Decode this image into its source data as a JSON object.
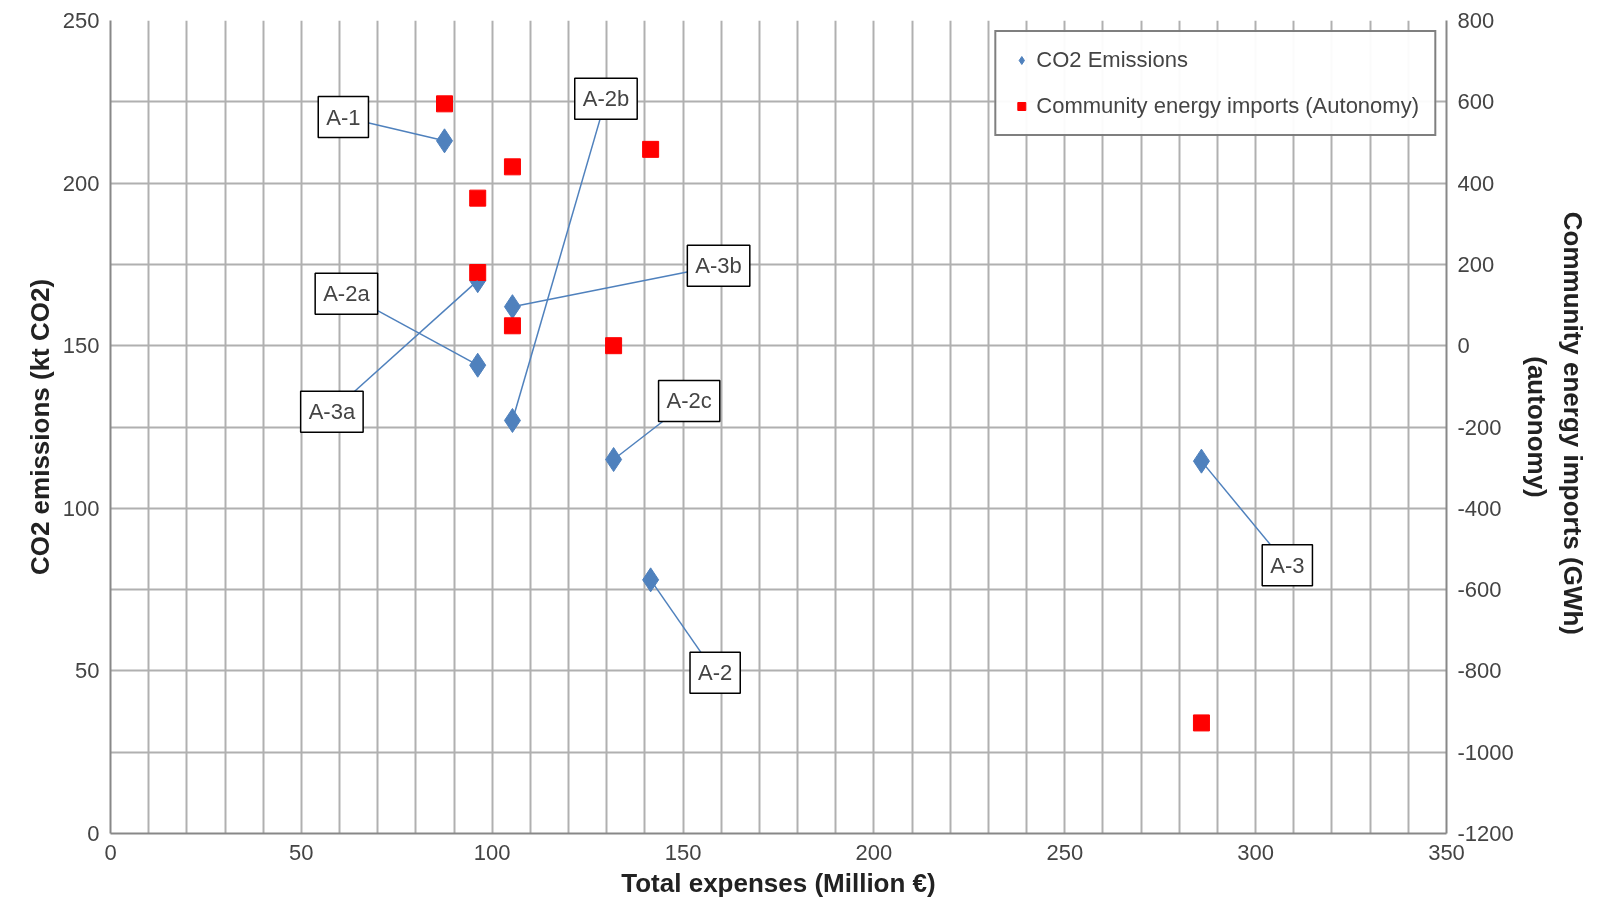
{
  "chart_data": {
    "type": "scatter",
    "xlabel": "Total expenses (Million €)",
    "ylabel": "CO2 emissions (kt CO2)",
    "y2label": "Community  energy imports (GWh)\n(autonomy)",
    "x": [
      87.5,
      96.2,
      96.2,
      105.3,
      105.3,
      131.8,
      141.5,
      285.8
    ],
    "series": [
      {
        "name": "CO2 Emissions",
        "color": "#4f81bd",
        "marker": "diamond",
        "values": [
          213,
          170,
          144,
          162,
          127,
          115,
          78,
          114.5
        ]
      },
      {
        "name": "Community energy imports (Autonomy)",
        "color": "#ff0000",
        "marker": "square",
        "axis": "y2",
        "values": [
          595,
          363,
          180,
          440,
          49,
          0,
          483,
          -928
        ]
      }
    ],
    "xlim": [
      0,
      350
    ],
    "xticks": [
      0,
      {
        "value": 10,
        "label": null
      },
      {
        "value": 20,
        "label": null
      },
      {
        "value": 30,
        "label": null
      },
      {
        "value": 40,
        "label": null
      },
      50,
      {
        "value": 60,
        "label": null
      },
      {
        "value": 70,
        "label": null
      },
      {
        "value": 80,
        "label": null
      },
      {
        "value": 90,
        "label": null
      },
      100,
      {
        "value": 110,
        "label": null
      },
      {
        "value": 120,
        "label": null
      },
      {
        "value": 130,
        "label": null
      },
      {
        "value": 140,
        "label": null
      },
      150,
      {
        "value": 160,
        "label": null
      },
      {
        "value": 170,
        "label": null
      },
      {
        "value": 180,
        "label": null
      },
      {
        "value": 190,
        "label": null
      },
      200,
      {
        "value": 210,
        "label": null
      },
      {
        "value": 220,
        "label": null
      },
      {
        "value": 230,
        "label": null
      },
      {
        "value": 240,
        "label": null
      },
      250,
      {
        "value": 260,
        "label": null
      },
      {
        "value": 270,
        "label": null
      },
      {
        "value": 280,
        "label": null
      },
      {
        "value": 290,
        "label": null
      },
      300,
      {
        "value": 310,
        "label": null
      },
      {
        "value": 320,
        "label": null
      },
      {
        "value": 330,
        "label": null
      },
      {
        "value": 340,
        "label": null
      },
      350
    ],
    "ylim": [
      0,
      250
    ],
    "yticks": [
      0,
      {
        "value": 25,
        "label": null
      },
      50,
      {
        "value": 75,
        "label": null
      },
      100,
      {
        "value": 125,
        "label": null
      },
      150,
      {
        "value": 175,
        "label": null
      },
      200,
      {
        "value": 225,
        "label": null
      },
      250
    ],
    "y2lim": [
      -1200,
      800
    ],
    "y2ticks": [
      -1200,
      -1000,
      -800,
      -600,
      -400,
      -200,
      0,
      200,
      400,
      600,
      800
    ],
    "grid": true,
    "legend": "top right",
    "annotations": [
      {
        "text": "A-1",
        "x": 87.5,
        "y": 213
      },
      {
        "text": "A-2b",
        "x": 105.3,
        "y": 127
      },
      {
        "text": "A-2a",
        "x": 96.2,
        "y": 144
      },
      {
        "text": "A-3b",
        "x": 105.3,
        "y": 162
      },
      {
        "text": "A-3a",
        "x": 96.2,
        "y": 170
      },
      {
        "text": "A-2c",
        "x": 131.8,
        "y": 115
      },
      {
        "text": "A-3",
        "x": 285.8,
        "y": 114.5
      },
      {
        "text": "A-2",
        "x": 141.5,
        "y": 78
      }
    ]
  }
}
